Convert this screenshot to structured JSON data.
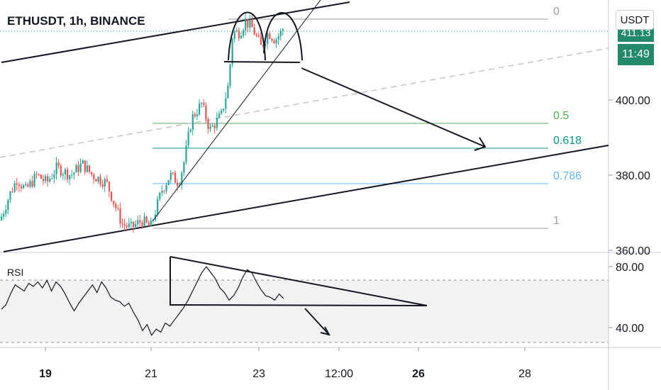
{
  "header": {
    "symbol": "ETHUSDT, 1h, BINANCE",
    "currency": "USDT",
    "price_tag": "411.13",
    "countdown": "11:49"
  },
  "rsi": {
    "title": "RSI"
  },
  "colors": {
    "up": "#26a69a",
    "down": "#ef5350",
    "price_line": "#22896a",
    "fib_0": "#9e9e9e",
    "fib_05": "#4caf50",
    "fib_0618": "#089981",
    "fib_0786": "#64b5f6",
    "fib_1": "#9e9e9e",
    "rsi_line": "#131722",
    "rsi_band": "#f2f2f2"
  },
  "chart_data": [
    {
      "type": "candlestick",
      "title": "ETHUSDT, 1h, BINANCE",
      "y_axis": {
        "ticks": [
          360,
          380,
          400
        ],
        "tick_labels": [
          "360.00",
          "380.00",
          "400.00"
        ],
        "range": [
          359.5,
          425
        ]
      },
      "x_axis": {
        "tick_labels": [
          "19",
          "21",
          "23",
          "12:00",
          "26",
          "28"
        ],
        "bold_labels": [
          "19",
          "26"
        ]
      },
      "fibonacci": [
        {
          "level": "0",
          "price": 423
        },
        {
          "level": "0.5",
          "price": 393
        },
        {
          "level": "0.618",
          "price": 386.5
        },
        {
          "level": "0.786",
          "price": 377
        },
        {
          "level": "1",
          "price": 365
        }
      ],
      "price_approx": {
        "start": 368,
        "day20_high": 383,
        "day21_low": 366,
        "day22_high": 401,
        "day23_high": 421,
        "last": 420
      }
    },
    {
      "type": "line",
      "title": "RSI",
      "y_axis": {
        "ticks": [
          40,
          80
        ],
        "tick_labels": [
          "40.00",
          "80.00"
        ],
        "range": [
          30,
          87
        ]
      },
      "bands": {
        "upper": 70,
        "lower": 30
      },
      "values": [
        52,
        55,
        62,
        68,
        66,
        64,
        69,
        67,
        70,
        66,
        71,
        64,
        70,
        67,
        62,
        56,
        51,
        56,
        60,
        64,
        68,
        63,
        70,
        66,
        60,
        58,
        57,
        54,
        56,
        50,
        45,
        38,
        42,
        35,
        39,
        37,
        43,
        41,
        45,
        49,
        53,
        58,
        64,
        70,
        76,
        80,
        76,
        72,
        66,
        63,
        58,
        61,
        66,
        73,
        78,
        76,
        70,
        65,
        61,
        60,
        58,
        62,
        59
      ]
    }
  ]
}
